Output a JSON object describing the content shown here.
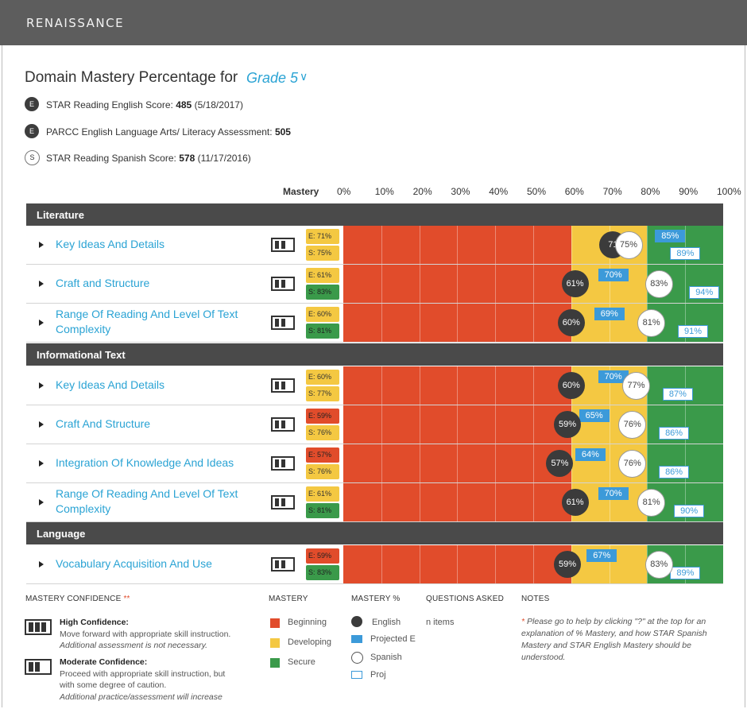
{
  "header": {
    "brand": "RENAISSANCE"
  },
  "page": {
    "title": "Domain Mastery Percentage for",
    "grade_label": "Grade 5"
  },
  "scores": [
    {
      "badge": "E",
      "label": "STAR Reading English Score:",
      "value": "485",
      "date": "(5/18/2017)"
    },
    {
      "badge": "E",
      "label": "PARCC English Language Arts/ Literacy Assessment:",
      "value": "505",
      "date": ""
    },
    {
      "badge": "S",
      "label": "STAR Reading Spanish Score:",
      "value": "578",
      "date": "(11/17/2016)"
    }
  ],
  "scale": {
    "mastery_label": "Mastery",
    "ticks": [
      "0%",
      "10%",
      "20%",
      "30%",
      "40%",
      "50%",
      "60%",
      "70%",
      "80%",
      "90%",
      "100%"
    ]
  },
  "colors": {
    "beginning": "#e14c2b",
    "developing": "#f4c842",
    "secure": "#3a9a4a",
    "english": "#3b3b3b",
    "projected": "#3c9ad9"
  },
  "sections": [
    {
      "title": "Literature",
      "rows": [
        {
          "name": "Key Ideas And Details",
          "confidence": "moderate",
          "e_label": "E: 71%",
          "e_level": "developing",
          "s_label": "S: 75%",
          "s_level": "developing",
          "english": 71,
          "spanish": 75,
          "proj_e": 85,
          "proj_s": 89,
          "english_text": "71",
          "spanish_text": "75%",
          "proj_e_text": "85%",
          "proj_s_text": "89%"
        },
        {
          "name": "Craft and Structure",
          "confidence": "moderate",
          "e_label": "E: 61%",
          "e_level": "developing",
          "s_label": "S: 83%",
          "s_level": "secure",
          "english": 61,
          "spanish": 83,
          "proj_e": 70,
          "proj_s": 94,
          "english_text": "61%",
          "spanish_text": "83%",
          "proj_e_text": "70%",
          "proj_s_text": "94%"
        },
        {
          "name": "Range Of Reading And Level Of Text Complexity",
          "confidence": "moderate",
          "e_label": "E: 60%",
          "e_level": "developing",
          "s_label": "S: 81%",
          "s_level": "secure",
          "english": 60,
          "spanish": 81,
          "proj_e": 69,
          "proj_s": 91,
          "english_text": "60%",
          "spanish_text": "81%",
          "proj_e_text": "69%",
          "proj_s_text": "91%"
        }
      ]
    },
    {
      "title": "Informational Text",
      "rows": [
        {
          "name": "Key Ideas And Details",
          "confidence": "moderate",
          "e_label": "E: 60%",
          "e_level": "developing",
          "s_label": "S: 77%",
          "s_level": "developing",
          "english": 60,
          "spanish": 77,
          "proj_e": 70,
          "proj_s": 87,
          "english_text": "60%",
          "spanish_text": "77%",
          "proj_e_text": "70%",
          "proj_s_text": "87%"
        },
        {
          "name": "Craft And Structure",
          "confidence": "moderate",
          "e_label": "E: 59%",
          "e_level": "beginning",
          "s_label": "S: 76%",
          "s_level": "developing",
          "english": 59,
          "spanish": 76,
          "proj_e": 65,
          "proj_s": 86,
          "english_text": "59%",
          "spanish_text": "76%",
          "proj_e_text": "65%",
          "proj_s_text": "86%"
        },
        {
          "name": "Integration Of Knowledge And Ideas",
          "confidence": "moderate",
          "e_label": "E: 57%",
          "e_level": "beginning",
          "s_label": "S: 76%",
          "s_level": "developing",
          "english": 57,
          "spanish": 76,
          "proj_e": 64,
          "proj_s": 86,
          "english_text": "57%",
          "spanish_text": "76%",
          "proj_e_text": "64%",
          "proj_s_text": "86%"
        },
        {
          "name": "Range Of Reading And Level Of Text Complexity",
          "confidence": "moderate",
          "e_label": "E: 61%",
          "e_level": "developing",
          "s_label": "S: 81%",
          "s_level": "secure",
          "english": 61,
          "spanish": 81,
          "proj_e": 70,
          "proj_s": 90,
          "english_text": "61%",
          "spanish_text": "81%",
          "proj_e_text": "70%",
          "proj_s_text": "90%"
        }
      ]
    },
    {
      "title": "Language",
      "rows": [
        {
          "name": "Vocabulary Acquisition And Use",
          "confidence": "moderate",
          "e_label": "E: 59%",
          "e_level": "beginning",
          "s_label": "S: 83%",
          "s_level": "secure",
          "english": 59,
          "spanish": 83,
          "proj_e": 67,
          "proj_s": 89,
          "english_text": "59%",
          "spanish_text": "83%",
          "proj_e_text": "67%",
          "proj_s_text": "89%"
        }
      ]
    }
  ],
  "legend": {
    "confidence_heading": "MASTERY CONFIDENCE",
    "confidence_marker": "**",
    "high_title": "High Confidence:",
    "high_text": "Move forward with appropriate skill instruction.",
    "high_note": "Additional assessment is not necessary.",
    "moderate_title": "Moderate Confidence:",
    "moderate_text1": "Proceed with appropriate skill instruction, but",
    "moderate_text2": "with some degree of caution.",
    "moderate_note": "Additional practice/assessment will increase",
    "mastery_heading": "MASTERY",
    "beginning": "Beginning",
    "developing": "Developing",
    "secure": "Secure",
    "pct_heading": "MASTERY %",
    "english": "English",
    "projected_e": "Projected E",
    "spanish": "Spanish",
    "projected_s": "Proj",
    "questions_heading": "QUESTIONS ASKED",
    "questions_value": "n items",
    "notes_heading": "NOTES",
    "notes_text": "Please go to help by clicking \"?\" at the top for an explanation of % Mastery, and how STAR Spanish Mastery and STAR English Mastery should be understood."
  }
}
